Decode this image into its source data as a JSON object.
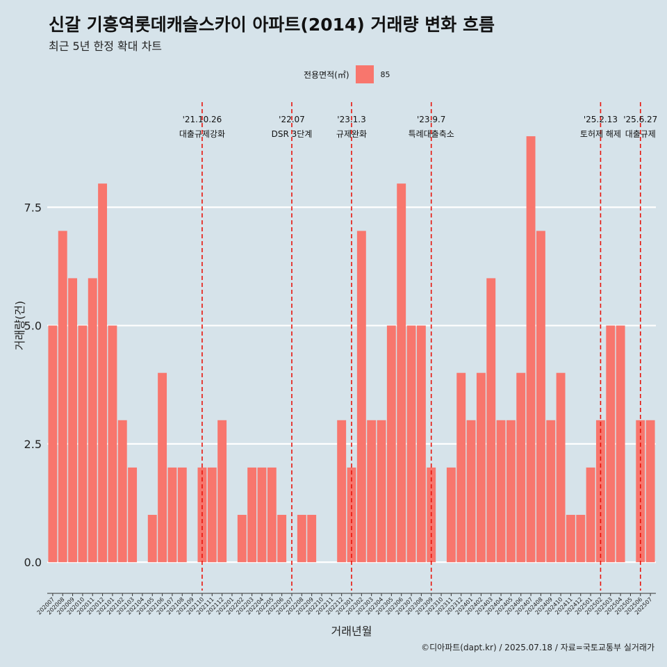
{
  "title": "신갈 기흥역롯데캐슬스카이 아파트(2014) 거래량 변화 흐름",
  "subtitle": "최근 5년 한정 확대 차트",
  "caption": "©디아파트(dapt.kr) / 2025.07.18 / 자료=국토교통부 실거래가",
  "legend": {
    "title": "전용면적(㎡)",
    "label": "85",
    "color": "#f8766d"
  },
  "chart_data": {
    "type": "bar",
    "xlabel": "거래년월",
    "ylabel": "거래량(건)",
    "ylim": [
      -0.6,
      9.75
    ],
    "yticks": [
      0,
      2.5,
      5,
      7.5
    ],
    "ytick_labels": [
      "0.0",
      "2.5",
      "5.0",
      "7.5"
    ],
    "bar_color": "#f8766d",
    "grid": true,
    "categories": [
      "202007",
      "202008",
      "202009",
      "202010",
      "202011",
      "202012",
      "202101",
      "202102",
      "202103",
      "202104",
      "202105",
      "202106",
      "202107",
      "202108",
      "202109",
      "202110",
      "202111",
      "202112",
      "202201",
      "202202",
      "202203",
      "202204",
      "202205",
      "202206",
      "202207",
      "202208",
      "202209",
      "202210",
      "202211",
      "202212",
      "202301",
      "202302",
      "202303",
      "202304",
      "202305",
      "202306",
      "202307",
      "202308",
      "202309",
      "202310",
      "202311",
      "202312",
      "202401",
      "202402",
      "202403",
      "202404",
      "202405",
      "202406",
      "202407",
      "202408",
      "202409",
      "202410",
      "202411",
      "202412",
      "202501",
      "202502",
      "202503",
      "202504",
      "202505",
      "202506",
      "202507"
    ],
    "values": [
      5,
      7,
      6,
      5,
      6,
      8,
      5,
      3,
      2,
      0,
      1,
      4,
      2,
      2,
      0,
      2,
      2,
      3,
      0,
      1,
      2,
      2,
      2,
      1,
      0,
      1,
      1,
      0,
      0,
      3,
      2,
      7,
      3,
      3,
      5,
      8,
      5,
      5,
      2,
      0,
      2,
      4,
      3,
      4,
      6,
      3,
      3,
      4,
      9,
      7,
      3,
      4,
      1,
      1,
      2,
      3,
      5,
      5,
      0,
      3,
      3
    ],
    "series": [
      {
        "name": "85"
      }
    ],
    "annotations": [
      {
        "x": "202110",
        "date": "'21.10.26",
        "label": "대출규제강화"
      },
      {
        "x": "202207",
        "date": "'22.07",
        "label": "DSR 3단계"
      },
      {
        "x": "202301",
        "date": "'23.1.3",
        "label": "규제완화"
      },
      {
        "x": "202309",
        "date": "'23.9.7",
        "label": "특례대출축소"
      },
      {
        "x": "202502",
        "date": "'25.2.13",
        "label": "토허제 해제"
      },
      {
        "x": "202506",
        "date": "'25.6.27",
        "label": "대출규제"
      }
    ]
  }
}
